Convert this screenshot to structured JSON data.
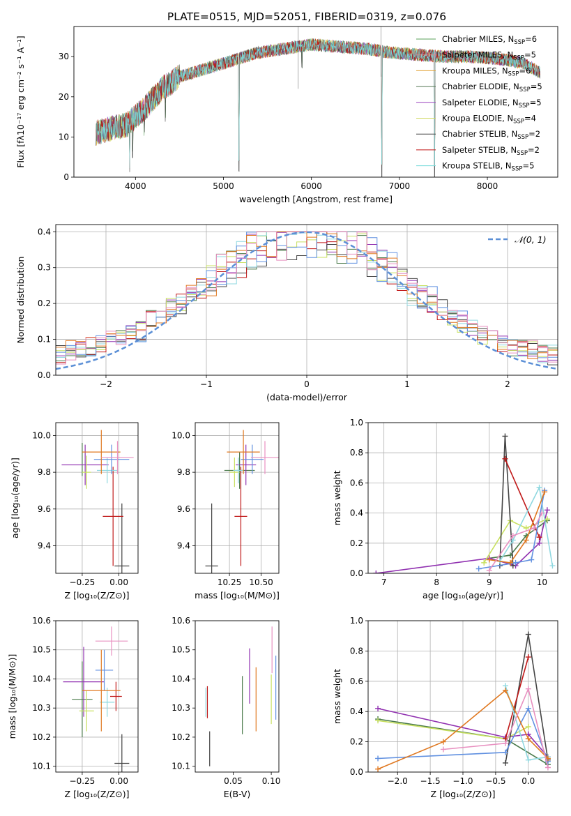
{
  "figure": {
    "title": "PLATE=0515, MJD=52051, FIBERID=0319, z=0.076"
  },
  "colors": {
    "models": [
      "#5aa05a",
      "#d98a8a",
      "#e0a030",
      "#557755",
      "#9a45c0",
      "#d0d860",
      "#444444",
      "#c01818",
      "#78dcdc"
    ],
    "pairs": [
      "#4a7a4a",
      "#9030b0",
      "#c8e060",
      "#444444",
      "#c01818",
      "#8fd8e0",
      "#6090e0",
      "#e07820",
      "#e890c0"
    ],
    "gaussian": "#5b8fd6",
    "grid": "#b0b0b0"
  },
  "chart_data": [
    {
      "type": "line",
      "id": "spectrum",
      "title": "PLATE=0515, MJD=52051, FIBERID=0319, z=0.076",
      "xlabel": "wavelength [Angstrom, rest frame]",
      "ylabel": "Flux [fλ10⁻¹⁷ erg cm⁻² s⁻¹ A⁻¹]",
      "xlim": [
        3300,
        8800
      ],
      "ylim": [
        0,
        37.5
      ],
      "xticks": [
        4000,
        5000,
        6000,
        7000,
        8000
      ],
      "yticks": [
        0,
        10,
        20,
        30
      ],
      "grid": false,
      "legend_position": "top-right",
      "legend": [
        {
          "name": "Chabrier MILES, N",
          "sub": "SSP",
          "n": "=6"
        },
        {
          "name": "Salpeter MILES, N",
          "sub": "SSP",
          "n": "=5"
        },
        {
          "name": "Kroupa MILES, N",
          "sub": "SSP",
          "n": "=6"
        },
        {
          "name": "Chabrier ELODIE, N",
          "sub": "SSP",
          "n": "=5"
        },
        {
          "name": "Salpeter ELODIE, N",
          "sub": "SSP",
          "n": "=5"
        },
        {
          "name": "Kroupa ELODIE, N",
          "sub": "SSP",
          "n": "=4"
        },
        {
          "name": "Chabrier STELIB, N",
          "sub": "SSP",
          "n": "=2"
        },
        {
          "name": "Salpeter STELIB, N",
          "sub": "SSP",
          "n": "=2"
        },
        {
          "name": "Kroupa STELIB, N",
          "sub": "SSP",
          "n": "=5"
        }
      ],
      "wavelength_range": [
        3550,
        8600
      ],
      "continuum": {
        "x": [
          3550,
          3700,
          3900,
          4100,
          4300,
          4500,
          4800,
          5100,
          5400,
          5700,
          6000,
          6300,
          6600,
          6900,
          7200,
          7500,
          7800,
          8100,
          8400,
          8600
        ],
        "y": [
          11,
          12,
          13,
          17,
          22,
          25,
          27,
          29,
          31,
          32,
          33,
          32.5,
          32,
          31,
          30.5,
          30,
          30,
          29.5,
          28.5,
          26
        ]
      },
      "absorption_spikes": [
        {
          "x": 3934,
          "depth": 0.9
        },
        {
          "x": 3968,
          "depth": 0.6
        },
        {
          "x": 4101,
          "depth": 0.3
        },
        {
          "x": 4340,
          "depth": 0.3
        },
        {
          "x": 5175,
          "depth": 0.95
        },
        {
          "x": 5893,
          "depth": 0.15
        },
        {
          "x": 6800,
          "depth": 1.0
        },
        {
          "x": 7400,
          "depth": 1.0
        }
      ]
    },
    {
      "type": "bar",
      "id": "residuals",
      "xlabel": "(data-model)/error",
      "ylabel": "Normed distribution",
      "xlim": [
        -2.5,
        2.5
      ],
      "ylim": [
        0,
        0.42
      ],
      "xticks": [
        -2,
        -1,
        0,
        1,
        2
      ],
      "yticks": [
        0.0,
        0.1,
        0.2,
        0.3,
        0.4
      ],
      "grid": true,
      "legend_position": "top-right",
      "legend": [
        {
          "name": "𝒩(0, 1)"
        }
      ],
      "bin_width": 0.1,
      "series_count": 9
    },
    {
      "type": "scatter",
      "id": "age-vs-z",
      "xlabel": "Z [log₁₀(Z/Z⊙)]",
      "ylabel": "age  [log₁₀(age/yr)]",
      "xlim": [
        -0.43,
        0.13
      ],
      "ylim": [
        9.25,
        10.07
      ],
      "xticks": [
        -0.25,
        0.0
      ],
      "xticklabels": [
        "−0.25",
        "0.00"
      ],
      "yticks": [
        9.4,
        9.6,
        9.8,
        10.0
      ],
      "grid": true,
      "points": [
        {
          "x": -0.25,
          "y": 9.87,
          "xerr": 0.0,
          "yerr": 0.09
        },
        {
          "x": -0.23,
          "y": 9.84,
          "xerr": 0.16,
          "yerr": 0.11
        },
        {
          "x": -0.22,
          "y": 9.8,
          "xerr": 0.03,
          "yerr": 0.09
        },
        {
          "x": 0.02,
          "y": 9.29,
          "xerr": 0.05,
          "yerr": 0.34
        },
        {
          "x": -0.04,
          "y": 9.56,
          "xerr": 0.07,
          "yerr": 0.27
        },
        {
          "x": -0.08,
          "y": 9.81,
          "xerr": 0.07,
          "yerr": 0.07
        },
        {
          "x": -0.05,
          "y": 9.87,
          "xerr": 0.12,
          "yerr": 0.08
        },
        {
          "x": -0.12,
          "y": 9.91,
          "xerr": 0.13,
          "yerr": 0.12
        },
        {
          "x": -0.01,
          "y": 9.88,
          "xerr": 0.11,
          "yerr": 0.09
        }
      ]
    },
    {
      "type": "scatter",
      "id": "age-vs-mass",
      "xlabel": "mass [log₁₀(M/M⊙)]",
      "ylabel": "",
      "xlim": [
        9.98,
        10.64
      ],
      "ylim": [
        9.25,
        10.07
      ],
      "xticks": [
        10.25,
        10.5
      ],
      "xticklabels": [
        "10.25",
        "10.50"
      ],
      "yticks": [
        9.4,
        9.6,
        9.8,
        10.0
      ],
      "grid": true,
      "points": [
        {
          "x": 10.33,
          "y": 9.81,
          "xerr": 0.12,
          "yerr": 0.1
        },
        {
          "x": 10.38,
          "y": 9.84,
          "xerr": 0.08,
          "yerr": 0.11
        },
        {
          "x": 10.29,
          "y": 9.8,
          "xerr": 0.04,
          "yerr": 0.08
        },
        {
          "x": 10.11,
          "y": 9.29,
          "xerr": 0.05,
          "yerr": 0.34
        },
        {
          "x": 10.34,
          "y": 9.56,
          "xerr": 0.05,
          "yerr": 0.27
        },
        {
          "x": 10.32,
          "y": 9.81,
          "xerr": 0.04,
          "yerr": 0.07
        },
        {
          "x": 10.43,
          "y": 9.87,
          "xerr": 0.09,
          "yerr": 0.08
        },
        {
          "x": 10.36,
          "y": 9.91,
          "xerr": 0.13,
          "yerr": 0.12
        },
        {
          "x": 10.53,
          "y": 9.88,
          "xerr": 0.11,
          "yerr": 0.09
        }
      ]
    },
    {
      "type": "line",
      "id": "weight-vs-age",
      "xlabel": "age  [log₁₀(age/yr)]",
      "ylabel": "mass weight",
      "xlim": [
        6.7,
        10.3
      ],
      "ylim": [
        0,
        1.0
      ],
      "xticks": [
        7,
        8,
        9,
        10
      ],
      "yticks": [
        0.0,
        0.2,
        0.4,
        0.6,
        0.8,
        1.0
      ],
      "grid": true,
      "series": [
        {
          "x": [
            9.0,
            9.4,
            9.7,
            10.1
          ],
          "y": [
            0.1,
            0.12,
            0.25,
            0.35
          ]
        },
        {
          "x": [
            6.85,
            9.0,
            9.5,
            9.95,
            10.1
          ],
          "y": [
            0.0,
            0.1,
            0.05,
            0.2,
            0.42
          ]
        },
        {
          "x": [
            8.9,
            9.4,
            9.7,
            10.1
          ],
          "y": [
            0.07,
            0.35,
            0.3,
            0.36
          ]
        },
        {
          "x": [
            9.2,
            9.3,
            9.45
          ],
          "y": [
            0.05,
            0.91,
            0.05
          ]
        },
        {
          "x": [
            9.3,
            9.95
          ],
          "y": [
            0.76,
            0.24
          ]
        },
        {
          "x": [
            9.2,
            9.45,
            9.95,
            10.2
          ],
          "y": [
            0.08,
            0.22,
            0.57,
            0.05
          ]
        },
        {
          "x": [
            8.8,
            9.5,
            9.8,
            10.05
          ],
          "y": [
            0.03,
            0.07,
            0.09,
            0.55
          ]
        },
        {
          "x": [
            9.0,
            9.4,
            9.7,
            10.05
          ],
          "y": [
            0.09,
            0.07,
            0.22,
            0.54
          ]
        },
        {
          "x": [
            9.0,
            9.45,
            9.85,
            10.0
          ],
          "y": [
            0.02,
            0.25,
            0.3,
            0.4
          ]
        }
      ]
    },
    {
      "type": "scatter",
      "id": "mass-vs-z",
      "xlabel": "Z [log₁₀(Z/Z⊙)]",
      "ylabel": "mass [log₁₀(M/M⊙)]",
      "xlim": [
        -0.43,
        0.13
      ],
      "ylim": [
        10.08,
        10.6
      ],
      "xticks": [
        -0.25,
        0.0
      ],
      "xticklabels": [
        "−0.25",
        "0.00"
      ],
      "yticks": [
        10.1,
        10.2,
        10.3,
        10.4,
        10.5,
        10.6
      ],
      "grid": true,
      "points": [
        {
          "x": -0.25,
          "y": 10.33,
          "xerr": 0.07,
          "yerr": 0.13
        },
        {
          "x": -0.24,
          "y": 10.39,
          "xerr": 0.14,
          "yerr": 0.12
        },
        {
          "x": -0.22,
          "y": 10.29,
          "xerr": 0.05,
          "yerr": 0.07
        },
        {
          "x": 0.02,
          "y": 10.11,
          "xerr": 0.05,
          "yerr": 0.1
        },
        {
          "x": -0.02,
          "y": 10.34,
          "xerr": 0.04,
          "yerr": 0.05
        },
        {
          "x": -0.08,
          "y": 10.32,
          "xerr": 0.05,
          "yerr": 0.05
        },
        {
          "x": -0.1,
          "y": 10.43,
          "xerr": 0.06,
          "yerr": 0.07
        },
        {
          "x": -0.12,
          "y": 10.36,
          "xerr": 0.13,
          "yerr": 0.14
        },
        {
          "x": -0.05,
          "y": 10.53,
          "xerr": 0.11,
          "yerr": 0.05
        }
      ]
    },
    {
      "type": "scatter",
      "id": "mass-vs-ebv",
      "xlabel": "E(B-V)",
      "ylabel": "",
      "xlim": [
        0.0,
        0.11
      ],
      "ylim": [
        10.08,
        10.6
      ],
      "xticks": [
        0.05,
        0.1
      ],
      "xticklabels": [
        "0.05",
        "0.10"
      ],
      "yticks": [
        10.1,
        10.2,
        10.3,
        10.4,
        10.5,
        10.6
      ],
      "grid": false,
      "points": [
        {
          "x": 0.062,
          "y": 10.31,
          "yerr": 0.1
        },
        {
          "x": 0.0715,
          "y": 10.41,
          "yerr": 0.095
        },
        {
          "x": 0.1,
          "y": 10.33,
          "yerr": 0.085
        },
        {
          "x": 0.019,
          "y": 10.16,
          "yerr": 0.06
        },
        {
          "x": 0.016,
          "y": 10.32,
          "yerr": 0.055
        },
        {
          "x": 0.014,
          "y": 10.32,
          "yerr": 0.05
        },
        {
          "x": 0.106,
          "y": 10.37,
          "yerr": 0.11
        },
        {
          "x": 0.08,
          "y": 10.33,
          "yerr": 0.11
        },
        {
          "x": 0.101,
          "y": 10.5,
          "yerr": 0.08
        }
      ]
    },
    {
      "type": "line",
      "id": "weight-vs-z",
      "xlabel": "Z [log₁₀(Z/Z⊙)]",
      "ylabel": "mass weight",
      "xlim": [
        -2.45,
        0.45
      ],
      "ylim": [
        0,
        1.0
      ],
      "xticks": [
        -2.0,
        -1.5,
        -1.0,
        -0.5,
        0.0
      ],
      "xticklabels": [
        "−2.0",
        "−1.5",
        "−1.0",
        "−0.5",
        "0.0"
      ],
      "yticks": [
        0.0,
        0.2,
        0.4,
        0.6,
        0.8,
        1.0
      ],
      "grid": true,
      "series": [
        {
          "x": [
            -2.3,
            -0.35,
            0.3
          ],
          "y": [
            0.35,
            0.22,
            0.05
          ]
        },
        {
          "x": [
            -2.3,
            -0.35,
            0.0,
            0.3
          ],
          "y": [
            0.42,
            0.23,
            0.25,
            0.1
          ]
        },
        {
          "x": [
            -2.3,
            -0.35,
            0.0
          ],
          "y": [
            0.34,
            0.22,
            0.3
          ]
        },
        {
          "x": [
            -0.35,
            0.0,
            0.3
          ],
          "y": [
            0.06,
            0.91,
            0.08
          ]
        },
        {
          "x": [
            -0.35,
            0.0
          ],
          "y": [
            0.22,
            0.76
          ]
        },
        {
          "x": [
            -0.35,
            0.0,
            0.3
          ],
          "y": [
            0.57,
            0.08,
            0.1
          ]
        },
        {
          "x": [
            -2.3,
            -0.35,
            0.0,
            0.3
          ],
          "y": [
            0.09,
            0.13,
            0.42,
            0.07
          ]
        },
        {
          "x": [
            -2.3,
            -1.3,
            -0.35,
            0.0,
            0.3
          ],
          "y": [
            0.02,
            0.2,
            0.54,
            0.22,
            0.09
          ]
        },
        {
          "x": [
            -1.3,
            -0.35,
            0.0,
            0.3
          ],
          "y": [
            0.15,
            0.19,
            0.55,
            0.03
          ]
        }
      ]
    }
  ]
}
